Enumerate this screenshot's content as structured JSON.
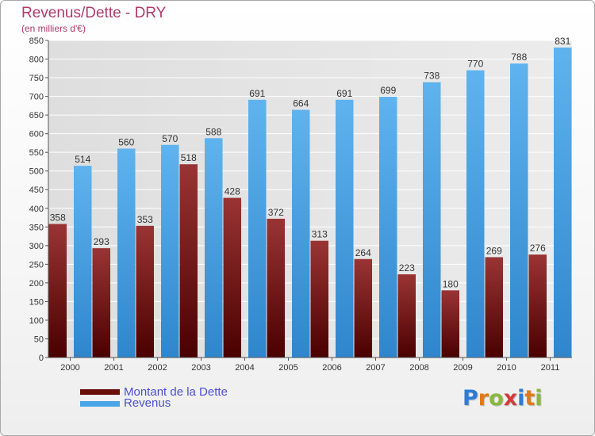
{
  "header": {
    "title": "Revenus/Dette - DRY",
    "subtitle": "(en milliers d'€)"
  },
  "legend": {
    "items": [
      {
        "label": "Montant de la Dette",
        "color": "#6b0d0d"
      },
      {
        "label": "Revenus",
        "color": "#4aa6e6"
      }
    ]
  },
  "logo": {
    "text": "Proxiti",
    "letter_colors": [
      "#2e7bd6",
      "#e07a18",
      "#8ab83a",
      "#d43a3a",
      "#2e7bd6",
      "#e07a18",
      "#8ab83a"
    ]
  },
  "colors": {
    "debt_top": "#9a3434",
    "debt_bottom": "#4a0000",
    "revenue_top": "#5fb3ee",
    "revenue_bottom": "#2f86cc",
    "title": "#b03a6a",
    "legend_text": "#4a50d0",
    "grid": "#ffffff",
    "plot_bg": "#e6e6e6"
  },
  "chart_data": {
    "type": "bar",
    "title": "Revenus/Dette - DRY",
    "subtitle": "(en milliers d'€)",
    "categories": [
      "2000",
      "2001",
      "2002",
      "2003",
      "2004",
      "2005",
      "2006",
      "2007",
      "2008",
      "2009",
      "2010",
      "2011"
    ],
    "series": [
      {
        "name": "Montant de la Dette",
        "values": [
          358,
          293,
          353,
          518,
          428,
          372,
          313,
          264,
          223,
          180,
          269,
          276
        ]
      },
      {
        "name": "Revenus",
        "values": [
          514,
          560,
          570,
          588,
          691,
          664,
          691,
          699,
          738,
          770,
          788,
          831
        ]
      }
    ],
    "ylim": [
      0,
      850
    ],
    "yticks": [
      0,
      50,
      100,
      150,
      200,
      250,
      300,
      350,
      400,
      450,
      500,
      550,
      600,
      650,
      700,
      750,
      800,
      850
    ],
    "grid": true,
    "legend_position": "bottom-left"
  }
}
